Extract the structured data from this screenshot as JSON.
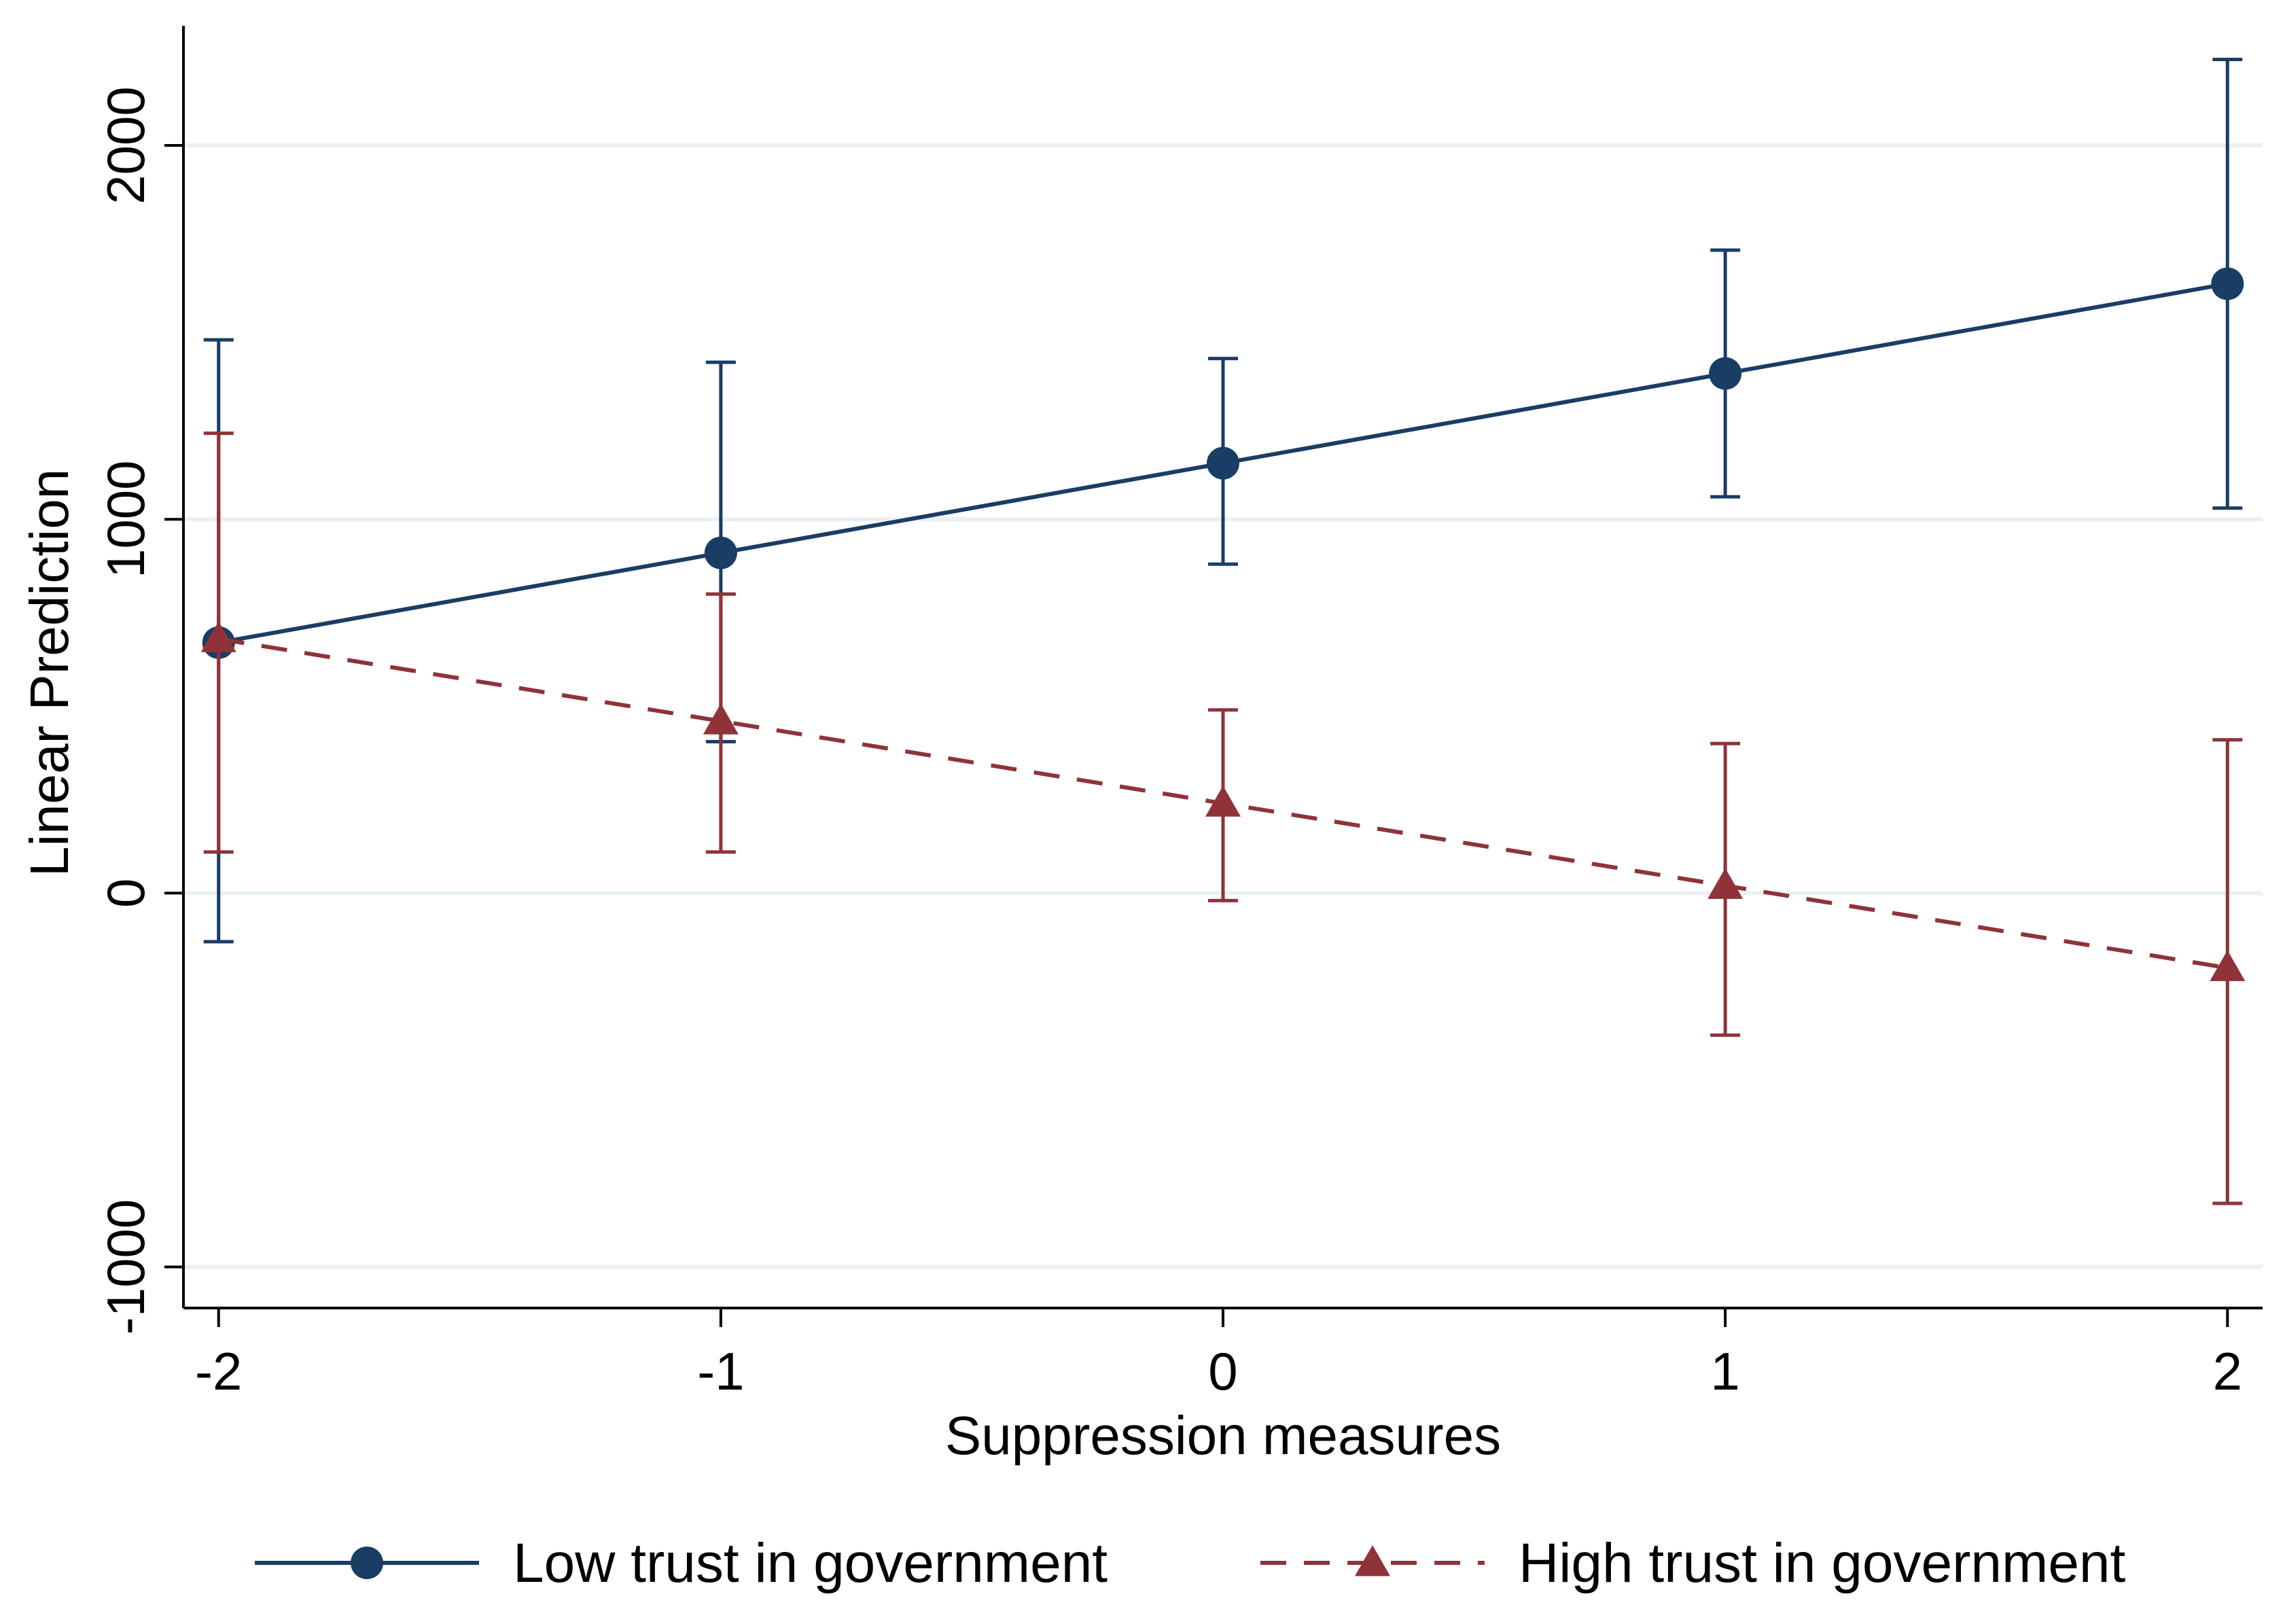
{
  "chart_data": {
    "type": "line",
    "title": "",
    "xlabel": "Suppression measures",
    "ylabel": "Linear Prediction",
    "x": [
      -2,
      -1,
      0,
      1,
      2
    ],
    "x_tick_labels": [
      "-2",
      "-1",
      "0",
      "1",
      "2"
    ],
    "y_ticks": [
      -1000,
      0,
      1000,
      2000
    ],
    "y_tick_labels": [
      "-1000",
      "0",
      "1000",
      "2000"
    ],
    "xlim": [
      -2.07,
      2.07
    ],
    "ylim": [
      -1110,
      2320
    ],
    "grid": true,
    "legend_position": "bottom",
    "series": [
      {
        "name": "Low trust in government",
        "color": "#1a3d66",
        "marker": "circle",
        "line": "solid",
        "values": [
          670,
          910,
          1150,
          1390,
          1630
        ],
        "ci_low": [
          -130,
          405,
          880,
          1060,
          1030
        ],
        "ci_high": [
          1480,
          1420,
          1430,
          1720,
          2230
        ]
      },
      {
        "name": "High trust in government",
        "color": "#8f3338",
        "marker": "triangle",
        "line": "dashed",
        "values": [
          680,
          460,
          240,
          20,
          -200
        ],
        "ci_low": [
          110,
          110,
          -20,
          -380,
          -830
        ],
        "ci_high": [
          1230,
          800,
          490,
          400,
          410
        ]
      }
    ]
  }
}
